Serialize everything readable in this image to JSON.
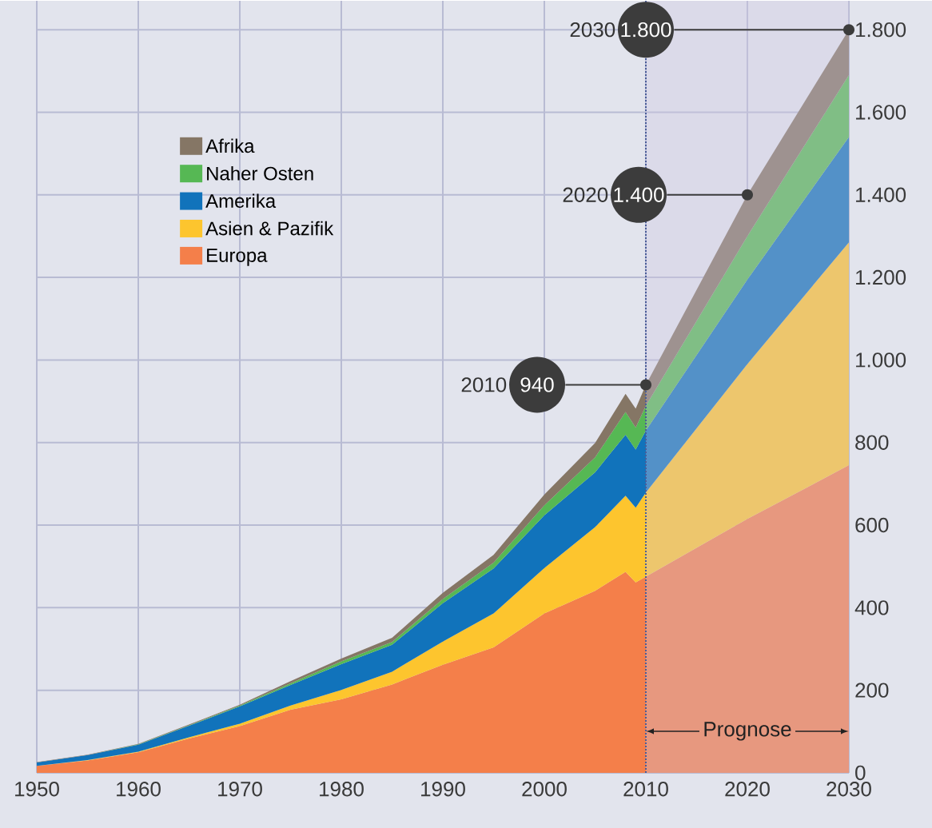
{
  "chart_data": {
    "type": "area",
    "stacked": true,
    "grid": true,
    "legend": "top left",
    "xlim": [
      1950,
      2030
    ],
    "ylim": [
      0,
      1870
    ],
    "xticks": [
      1950,
      1960,
      1970,
      1980,
      1990,
      2000,
      2010,
      2020,
      2030
    ],
    "yticks": [
      0,
      200,
      400,
      600,
      800,
      {
        "value": 1000,
        "label": "1.000"
      },
      {
        "value": 1200,
        "label": "1.200"
      },
      {
        "value": 1400,
        "label": "1.400"
      },
      {
        "value": 1600,
        "label": "1.600"
      },
      {
        "value": 1800,
        "label": "1.800"
      }
    ],
    "x": [
      1950,
      1955,
      1960,
      1965,
      1970,
      1975,
      1980,
      1985,
      1990,
      1995,
      2000,
      2005,
      2008,
      2009,
      2010,
      2020,
      2030
    ],
    "series": [
      {
        "name": "Europa",
        "color": "#f47f4a",
        "values": [
          17,
          30,
          50,
          83,
          113,
          153,
          178,
          214,
          262,
          304,
          386,
          441,
          487,
          461,
          475,
          615,
          745
        ]
      },
      {
        "name": "Asien & Pazifik",
        "color": "#fdc52e",
        "values": [
          0,
          1,
          1,
          3,
          6,
          10,
          23,
          31,
          56,
          82,
          110,
          154,
          184,
          181,
          204,
          375,
          540
        ]
      },
      {
        "name": "Amerika",
        "color": "#1173bb",
        "values": [
          8,
          12,
          17,
          28,
          42,
          50,
          62,
          65,
          93,
          109,
          128,
          133,
          148,
          141,
          150,
          205,
          255
        ]
      },
      {
        "name": "Naher Osten",
        "color": "#56b854",
        "values": [
          0,
          0,
          1,
          1,
          2,
          4,
          7,
          7,
          10,
          14,
          24,
          36,
          55,
          53,
          60,
          105,
          150
        ]
      },
      {
        "name": "Afrika",
        "color": "#857665",
        "values": [
          1,
          1,
          1,
          2,
          2,
          5,
          7,
          10,
          15,
          19,
          26,
          35,
          44,
          46,
          51,
          100,
          110
        ]
      }
    ],
    "bands": [
      {
        "axis": "x",
        "from": 2010,
        "to": 2030,
        "label": "Prognose",
        "color": "#cdc8e2"
      }
    ],
    "ref_lines": [
      {
        "axis": "x",
        "value": 2010,
        "color": "#4a5d99",
        "line_style": "dotted"
      }
    ],
    "annotations": [
      "2010",
      {
        "text": "940",
        "x": 2010,
        "y": 940
      },
      "2020",
      {
        "text": "1.400",
        "x": 2020,
        "y": 1400
      },
      "2030",
      {
        "text": "1.800",
        "x": 2030,
        "y": 1800
      }
    ]
  }
}
